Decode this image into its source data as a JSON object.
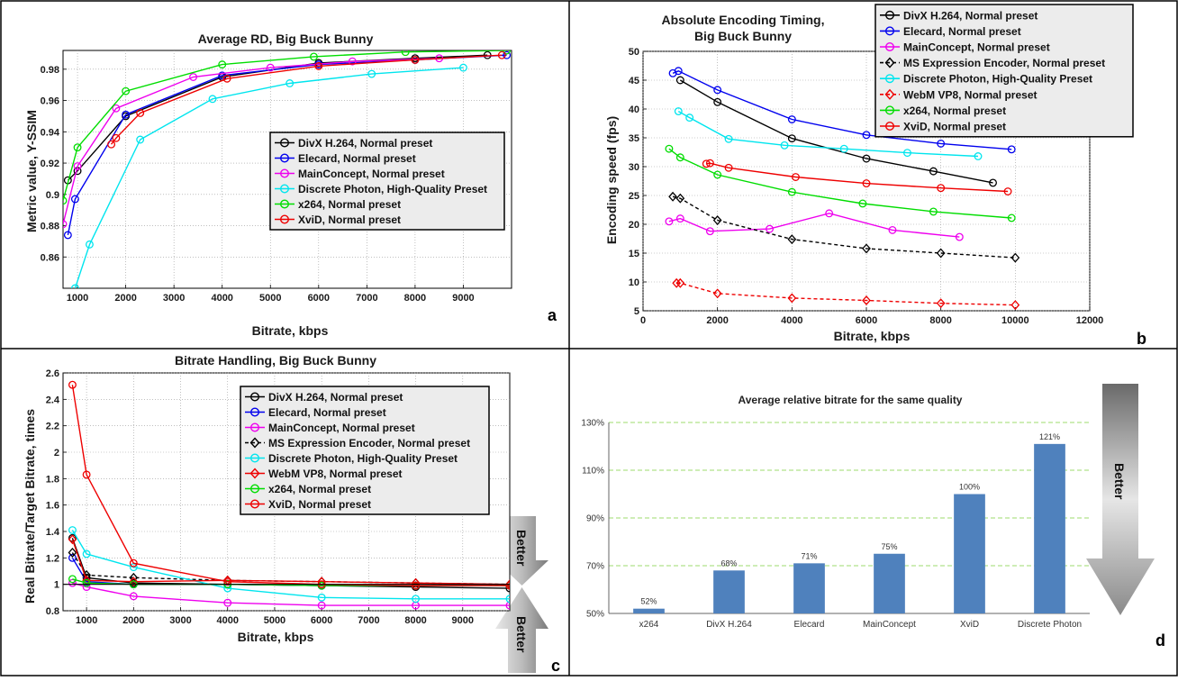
{
  "panel_letters": {
    "a": "a",
    "b": "b",
    "c": "c",
    "d": "d"
  },
  "better_label": "Better",
  "chart_data": [
    {
      "id": "a",
      "type": "line",
      "title": "Average RD, Big Buck Bunny",
      "xlabel": "Bitrate, kbps",
      "ylabel": "Metric value, Y-SSIM",
      "xlim": [
        700,
        10000
      ],
      "ylim": [
        0.84,
        0.992
      ],
      "xticks": [
        1000,
        2000,
        3000,
        4000,
        5000,
        6000,
        7000,
        8000,
        9000
      ],
      "yticks": [
        0.86,
        0.88,
        0.9,
        0.92,
        0.94,
        0.96,
        0.98
      ],
      "grid": true,
      "legend_position": "center-right",
      "series": [
        {
          "name": "DivX H.264, Normal preset",
          "color": "#000000",
          "marker": "circle",
          "x": [
            800,
            1000,
            2000,
            4000,
            6000,
            8000,
            9500
          ],
          "y": [
            0.909,
            0.915,
            0.95,
            0.975,
            0.984,
            0.987,
            0.989
          ]
        },
        {
          "name": "Elecard, Normal preset",
          "color": "#0000ee",
          "marker": "circle",
          "x": [
            800,
            950,
            2000,
            4000,
            6000,
            8000,
            9900
          ],
          "y": [
            0.874,
            0.897,
            0.951,
            0.976,
            0.983,
            0.986,
            0.989
          ]
        },
        {
          "name": "MainConcept, Normal preset",
          "color": "#ee00ee",
          "marker": "circle",
          "x": [
            700,
            1000,
            1800,
            3400,
            5000,
            6700,
            8500
          ],
          "y": [
            0.881,
            0.918,
            0.955,
            0.975,
            0.981,
            0.985,
            0.987
          ]
        },
        {
          "name": "Discrete Photon, High-Quality Preset",
          "color": "#00e5ee",
          "marker": "circle",
          "x": [
            950,
            1250,
            2300,
            3800,
            5400,
            7100,
            9000
          ],
          "y": [
            0.84,
            0.868,
            0.935,
            0.961,
            0.971,
            0.977,
            0.981
          ]
        },
        {
          "name": "x264, Normal preset",
          "color": "#00dd00",
          "marker": "circle",
          "x": [
            700,
            1000,
            2000,
            4000,
            5900,
            7800,
            9900
          ],
          "y": [
            0.896,
            0.93,
            0.966,
            0.983,
            0.988,
            0.991,
            0.992
          ]
        },
        {
          "name": "XviD, Normal preset",
          "color": "#ee0000",
          "marker": "circle",
          "x": [
            1700,
            1800,
            2300,
            4100,
            6000,
            8000,
            9800
          ],
          "y": [
            0.932,
            0.936,
            0.952,
            0.974,
            0.982,
            0.986,
            0.989
          ]
        }
      ]
    },
    {
      "id": "b",
      "type": "line",
      "title": "Absolute Encoding Timing,",
      "subtitle": "Big Buck Bunny",
      "xlabel": "Bitrate, kbps",
      "ylabel": "Encoding speed (fps)",
      "xlim": [
        0,
        12000
      ],
      "ylim": [
        5,
        50
      ],
      "xticks": [
        0,
        2000,
        4000,
        6000,
        8000,
        10000,
        12000
      ],
      "yticks": [
        5,
        10,
        15,
        20,
        25,
        30,
        35,
        40,
        45,
        50
      ],
      "grid": true,
      "legend_position": "top-right",
      "series": [
        {
          "name": "DivX H.264, Normal preset",
          "color": "#000000",
          "marker": "circle",
          "dashed": false,
          "x": [
            1000,
            2000,
            4000,
            6000,
            7800,
            9400
          ],
          "y": [
            45.0,
            41.2,
            34.9,
            31.4,
            29.2,
            27.2
          ]
        },
        {
          "name": "Elecard, Normal preset",
          "color": "#0000ee",
          "marker": "circle",
          "dashed": false,
          "x": [
            800,
            950,
            2000,
            4000,
            6000,
            8000,
            9900
          ],
          "y": [
            46.2,
            46.6,
            43.3,
            38.2,
            35.5,
            34.0,
            33.0
          ]
        },
        {
          "name": "MainConcept, Normal preset",
          "color": "#ee00ee",
          "marker": "circle",
          "dashed": false,
          "x": [
            700,
            1000,
            1800,
            3400,
            5000,
            6700,
            8500
          ],
          "y": [
            20.5,
            21.0,
            18.8,
            19.2,
            21.9,
            19.0,
            17.8
          ]
        },
        {
          "name": "MS Expression Encoder, Normal preset",
          "color": "#000000",
          "marker": "diamond",
          "dashed": true,
          "x": [
            800,
            1000,
            2000,
            4000,
            6000,
            8000,
            10000
          ],
          "y": [
            24.8,
            24.5,
            20.7,
            17.4,
            15.8,
            15.0,
            14.2
          ]
        },
        {
          "name": "Discrete Photon, High-Quality Preset",
          "color": "#00e5ee",
          "marker": "circle",
          "dashed": false,
          "x": [
            950,
            1250,
            2300,
            3800,
            5400,
            7100,
            9000
          ],
          "y": [
            39.6,
            38.5,
            34.8,
            33.7,
            33.1,
            32.4,
            31.8
          ]
        },
        {
          "name": "WebM VP8, Normal preset",
          "color": "#ee0000",
          "marker": "diamond",
          "dashed": true,
          "x": [
            900,
            1000,
            2000,
            4000,
            6000,
            8000,
            10000
          ],
          "y": [
            9.8,
            9.8,
            8.0,
            7.2,
            6.8,
            6.3,
            6.0
          ]
        },
        {
          "name": "x264, Normal preset",
          "color": "#00dd00",
          "marker": "circle",
          "dashed": false,
          "x": [
            700,
            1000,
            2000,
            4000,
            5900,
            7800,
            9900
          ],
          "y": [
            33.1,
            31.6,
            28.6,
            25.6,
            23.6,
            22.2,
            21.1
          ]
        },
        {
          "name": "XviD, Normal preset",
          "color": "#ee0000",
          "marker": "circle",
          "dashed": false,
          "x": [
            1700,
            1800,
            2300,
            4100,
            6000,
            8000,
            9800
          ],
          "y": [
            30.5,
            30.6,
            29.8,
            28.2,
            27.1,
            26.3,
            25.7
          ]
        }
      ]
    },
    {
      "id": "c",
      "type": "line",
      "title": "Bitrate Handling, Big Buck Bunny",
      "xlabel": "Bitrate, kbps",
      "ylabel": "Real Bitrate/Target Bitrate, times",
      "xlim": [
        500,
        10000
      ],
      "ylim": [
        0.8,
        2.6
      ],
      "xticks": [
        1000,
        2000,
        3000,
        4000,
        5000,
        6000,
        7000,
        8000,
        9000
      ],
      "yticks": [
        0.8,
        1,
        1.2,
        1.4,
        1.6,
        1.8,
        2,
        2.2,
        2.4,
        2.6
      ],
      "grid": true,
      "legend_position": "top-right",
      "series": [
        {
          "name": "DivX H.264, Normal preset",
          "color": "#000000",
          "marker": "circle",
          "dashed": false,
          "x": [
            700,
            1000,
            2000,
            4000,
            6000,
            8000,
            10000
          ],
          "y": [
            1.35,
            1.05,
            1.01,
            1.0,
            0.99,
            0.98,
            0.97
          ]
        },
        {
          "name": "Elecard, Normal preset",
          "color": "#0000ee",
          "marker": "circle",
          "dashed": false,
          "x": [
            700,
            1000,
            2000,
            4000,
            6000,
            8000,
            10000
          ],
          "y": [
            1.2,
            1.02,
            1.0,
            1.0,
            0.99,
            0.99,
            0.99
          ]
        },
        {
          "name": "MainConcept, Normal preset",
          "color": "#ee00ee",
          "marker": "circle",
          "dashed": false,
          "x": [
            700,
            1000,
            2000,
            4000,
            6000,
            8000,
            10000
          ],
          "y": [
            1.01,
            0.98,
            0.91,
            0.86,
            0.84,
            0.84,
            0.84
          ]
        },
        {
          "name": "MS Expression Encoder, Normal preset",
          "color": "#000000",
          "marker": "diamond",
          "dashed": true,
          "x": [
            700,
            1000,
            2000,
            4000,
            6000,
            8000,
            10000
          ],
          "y": [
            1.24,
            1.07,
            1.05,
            1.03,
            1.02,
            1.01,
            1.0
          ]
        },
        {
          "name": "Discrete Photon, High-Quality Preset",
          "color": "#00e5ee",
          "marker": "circle",
          "dashed": false,
          "x": [
            700,
            1000,
            2000,
            4000,
            6000,
            8000,
            10000
          ],
          "y": [
            1.41,
            1.23,
            1.13,
            0.97,
            0.9,
            0.89,
            0.89
          ]
        },
        {
          "name": "WebM VP8, Normal preset",
          "color": "#ee0000",
          "marker": "diamond",
          "dashed": false,
          "x": [
            700,
            1000,
            2000,
            4000,
            6000,
            8000,
            10000
          ],
          "y": [
            1.34,
            1.03,
            1.02,
            1.03,
            1.02,
            1.01,
            1.0
          ]
        },
        {
          "name": "x264, Normal preset",
          "color": "#00dd00",
          "marker": "circle",
          "dashed": false,
          "x": [
            700,
            1000,
            2000,
            4000,
            6000,
            8000,
            10000
          ],
          "y": [
            1.04,
            1.01,
            1.0,
            1.0,
            0.99,
            0.99,
            0.99
          ]
        },
        {
          "name": "XviD, Normal preset",
          "color": "#ee0000",
          "marker": "circle",
          "dashed": false,
          "x": [
            700,
            1000,
            2000,
            4000,
            6000,
            8000,
            10000
          ],
          "y": [
            2.51,
            1.83,
            1.16,
            1.02,
            1.0,
            0.99,
            0.99
          ]
        }
      ]
    },
    {
      "id": "d",
      "type": "bar",
      "title": "Average relative bitrate for the same quality",
      "xlabel": "",
      "ylabel": "",
      "ylim": [
        50,
        130
      ],
      "yticks": [
        50,
        70,
        90,
        110,
        130
      ],
      "ytick_labels": [
        "50%",
        "70%",
        "90%",
        "110%",
        "130%"
      ],
      "grid": true,
      "bar_color": "#4f81bd",
      "grid_color": "#7fcf3f",
      "categories": [
        "x264",
        "DivX H.264",
        "Elecard",
        "MainConcept",
        "XviD",
        "Discrete Photon"
      ],
      "values": [
        52,
        68,
        71,
        75,
        100,
        121
      ],
      "value_labels": [
        "52%",
        "68%",
        "71%",
        "75%",
        "100%",
        "121%"
      ]
    }
  ]
}
